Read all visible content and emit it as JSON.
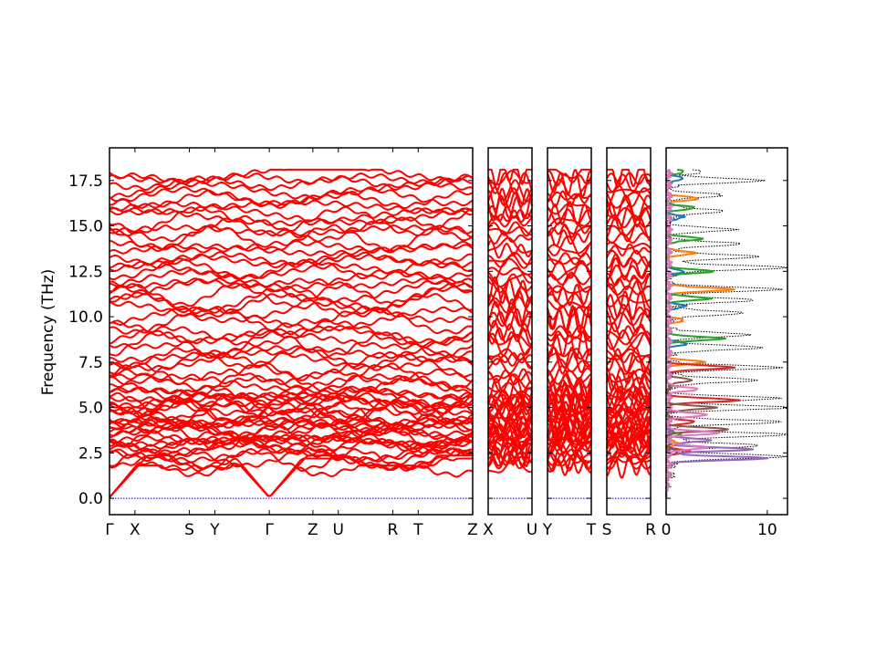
{
  "chart_data": {
    "type": "line",
    "ylabel": "Frequency (THz)",
    "ylim": [
      -0.9,
      19.3
    ],
    "yticks": [
      0.0,
      2.5,
      5.0,
      7.5,
      10.0,
      12.5,
      15.0,
      17.5
    ],
    "ytick_labels": [
      "0.0",
      "2.5",
      "5.0",
      "7.5",
      "10.0",
      "12.5",
      "15.0",
      "17.5"
    ],
    "colors": {
      "bands": "#ff0000",
      "zero_line": "#0000cc",
      "dos_total": "#000000",
      "dos_partials": [
        "#1f77b4",
        "#ff7f0e",
        "#2ca02c",
        "#d62728",
        "#9467bd",
        "#8c564b",
        "#e377c2"
      ]
    },
    "band_panels": [
      {
        "segments": [
          {
            "from": "Γ",
            "to": "X",
            "length": 0.7
          },
          {
            "from": "X",
            "to": "S",
            "length": 1.5
          },
          {
            "from": "S",
            "to": "Y",
            "length": 0.7
          },
          {
            "from": "Y",
            "to": "Γ",
            "length": 1.5
          },
          {
            "from": "Γ",
            "to": "Z",
            "length": 1.2
          },
          {
            "from": "Z",
            "to": "U",
            "length": 0.7
          },
          {
            "from": "U",
            "to": "R",
            "length": 1.5
          },
          {
            "from": "R",
            "to": "T",
            "length": 0.7
          },
          {
            "from": "T",
            "to": "Z",
            "length": 1.5
          }
        ],
        "labels": [
          "Γ",
          "X",
          "S",
          "Y",
          "Γ",
          "Z",
          "U",
          "R",
          "T",
          "Z"
        ]
      },
      {
        "segments": [
          {
            "from": "X",
            "to": "U",
            "length": 1.2
          }
        ],
        "labels": [
          "X",
          "U"
        ]
      },
      {
        "segments": [
          {
            "from": "Y",
            "to": "T",
            "length": 1.2
          }
        ],
        "labels": [
          "Y",
          "T"
        ]
      },
      {
        "segments": [
          {
            "from": "S",
            "to": "R",
            "length": 1.2
          }
        ],
        "labels": [
          "S",
          "R"
        ]
      }
    ],
    "acoustic_zero_points": [
      "Γ"
    ],
    "num_branches": 72,
    "branch_max_frequency": 18.1,
    "dos_panel": {
      "xlim": [
        0,
        12
      ],
      "xticks": [
        0,
        10
      ],
      "xtick_labels": [
        "0",
        "10"
      ],
      "total_peaks": [
        {
          "freq": 2.3,
          "value": 11.5
        },
        {
          "freq": 2.9,
          "value": 9.0
        },
        {
          "freq": 3.5,
          "value": 12.0
        },
        {
          "freq": 4.2,
          "value": 11.0
        },
        {
          "freq": 5.0,
          "value": 12.0
        },
        {
          "freq": 5.5,
          "value": 10.5
        },
        {
          "freq": 6.5,
          "value": 9.0
        },
        {
          "freq": 7.2,
          "value": 11.0
        },
        {
          "freq": 8.3,
          "value": 9.5
        },
        {
          "freq": 9.0,
          "value": 8.0
        },
        {
          "freq": 10.2,
          "value": 7.5
        },
        {
          "freq": 10.9,
          "value": 8.5
        },
        {
          "freq": 11.5,
          "value": 11.0
        },
        {
          "freq": 12.7,
          "value": 12.0
        },
        {
          "freq": 13.3,
          "value": 9.0
        },
        {
          "freq": 14.0,
          "value": 7.0
        },
        {
          "freq": 14.8,
          "value": 6.0
        },
        {
          "freq": 15.8,
          "value": 5.5
        },
        {
          "freq": 16.7,
          "value": 5.0
        },
        {
          "freq": 17.5,
          "value": 9.5
        },
        {
          "freq": 18.0,
          "value": 3.0
        }
      ],
      "partial_peaks": [
        [
          {
            "freq": 2.6,
            "value": 1.0
          },
          {
            "freq": 8.5,
            "value": 1.8
          },
          {
            "freq": 10.6,
            "value": 1.6
          },
          {
            "freq": 12.5,
            "value": 1.5
          },
          {
            "freq": 15.5,
            "value": 1.4
          },
          {
            "freq": 17.6,
            "value": 1.6
          }
        ],
        [
          {
            "freq": 3.0,
            "value": 1.0
          },
          {
            "freq": 7.5,
            "value": 3.5
          },
          {
            "freq": 9.8,
            "value": 1.4
          },
          {
            "freq": 11.5,
            "value": 6.5
          },
          {
            "freq": 13.5,
            "value": 2.5
          },
          {
            "freq": 16.5,
            "value": 3.0
          }
        ],
        [
          {
            "freq": 3.5,
            "value": 1.2
          },
          {
            "freq": 8.8,
            "value": 5.5
          },
          {
            "freq": 11.0,
            "value": 4.0
          },
          {
            "freq": 12.5,
            "value": 4.5
          },
          {
            "freq": 14.3,
            "value": 3.3
          },
          {
            "freq": 16.0,
            "value": 2.5
          },
          {
            "freq": 18.0,
            "value": 1.5
          }
        ],
        [
          {
            "freq": 5.4,
            "value": 7.0
          },
          {
            "freq": 7.2,
            "value": 6.5
          },
          {
            "freq": 4.2,
            "value": 2.5
          },
          {
            "freq": 2.6,
            "value": 2.0
          }
        ],
        [
          {
            "freq": 2.2,
            "value": 10.0
          },
          {
            "freq": 2.7,
            "value": 8.5
          },
          {
            "freq": 3.2,
            "value": 4.0
          }
        ],
        [
          {
            "freq": 3.8,
            "value": 6.0
          },
          {
            "freq": 5.0,
            "value": 4.5
          },
          {
            "freq": 6.5,
            "value": 2.5
          }
        ],
        [
          {
            "freq": 2.8,
            "value": 4.0
          },
          {
            "freq": 3.6,
            "value": 5.0
          },
          {
            "freq": 4.6,
            "value": 4.0
          },
          {
            "freq": 6.0,
            "value": 3.0
          }
        ]
      ]
    }
  }
}
